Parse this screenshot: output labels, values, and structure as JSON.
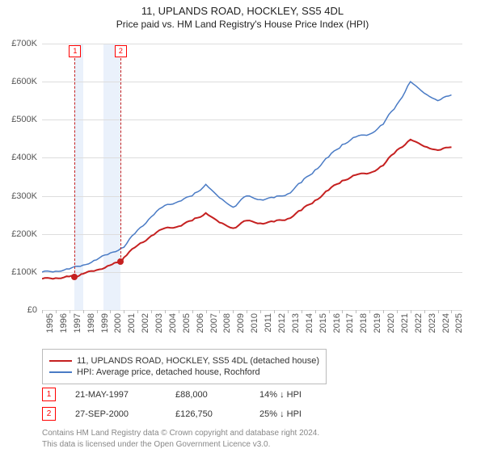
{
  "title_line1": "11, UPLANDS ROAD, HOCKLEY, SS5 4DL",
  "title_line2": "Price paid vs. HM Land Registry's House Price Index (HPI)",
  "chart": {
    "type": "line",
    "background_color": "#ffffff",
    "grid_color": "#dddddd",
    "axis_color": "#bbbbbb",
    "text_color": "#555555",
    "xlim": [
      1995,
      2025.8
    ],
    "ylim": [
      0,
      700000
    ],
    "ytick_step": 100000,
    "yticks": [
      {
        "v": 0,
        "label": "£0"
      },
      {
        "v": 100000,
        "label": "£100K"
      },
      {
        "v": 200000,
        "label": "£200K"
      },
      {
        "v": 300000,
        "label": "£300K"
      },
      {
        "v": 400000,
        "label": "£400K"
      },
      {
        "v": 500000,
        "label": "£500K"
      },
      {
        "v": 600000,
        "label": "£600K"
      },
      {
        "v": 700000,
        "label": "£700K"
      }
    ],
    "xticks": [
      1995,
      1996,
      1997,
      1998,
      1999,
      2000,
      2001,
      2002,
      2003,
      2004,
      2005,
      2006,
      2007,
      2008,
      2009,
      2010,
      2011,
      2012,
      2013,
      2014,
      2015,
      2016,
      2017,
      2018,
      2019,
      2020,
      2021,
      2022,
      2023,
      2024,
      2025
    ],
    "bands": [
      {
        "from": 1997.39,
        "to": 1998.0,
        "color": "#eaf1fb"
      },
      {
        "from": 1999.5,
        "to": 2000.74,
        "color": "#eaf1fb"
      }
    ],
    "markers": [
      {
        "num": "1",
        "x": 1997.39,
        "y": 88000
      },
      {
        "num": "2",
        "x": 2000.74,
        "y": 126750
      }
    ],
    "series": [
      {
        "label": "11, UPLANDS ROAD, HOCKLEY, SS5 4DL (detached house)",
        "color": "#c52020",
        "line_width": 2,
        "data": [
          [
            1995,
            82000
          ],
          [
            1996,
            84000
          ],
          [
            1997,
            88000
          ],
          [
            1997.39,
            88000
          ],
          [
            1998,
            95000
          ],
          [
            1999,
            105000
          ],
          [
            2000,
            118000
          ],
          [
            2000.74,
            126750
          ],
          [
            2001,
            138000
          ],
          [
            2002,
            170000
          ],
          [
            2003,
            195000
          ],
          [
            2004,
            215000
          ],
          [
            2005,
            220000
          ],
          [
            2006,
            235000
          ],
          [
            2007,
            255000
          ],
          [
            2008,
            230000
          ],
          [
            2009,
            215000
          ],
          [
            2010,
            235000
          ],
          [
            2011,
            228000
          ],
          [
            2012,
            232000
          ],
          [
            2013,
            240000
          ],
          [
            2014,
            262000
          ],
          [
            2015,
            288000
          ],
          [
            2016,
            315000
          ],
          [
            2017,
            340000
          ],
          [
            2018,
            355000
          ],
          [
            2019,
            360000
          ],
          [
            2020,
            380000
          ],
          [
            2021,
            420000
          ],
          [
            2022,
            448000
          ],
          [
            2023,
            430000
          ],
          [
            2024,
            420000
          ],
          [
            2025,
            428000
          ]
        ]
      },
      {
        "label": "HPI: Average price, detached house, Rochford",
        "color": "#4a7bc5",
        "line_width": 1.5,
        "data": [
          [
            1995,
            100000
          ],
          [
            1996,
            102000
          ],
          [
            1997,
            108000
          ],
          [
            1998,
            118000
          ],
          [
            1999,
            132000
          ],
          [
            2000,
            150000
          ],
          [
            2001,
            165000
          ],
          [
            2002,
            210000
          ],
          [
            2003,
            245000
          ],
          [
            2004,
            275000
          ],
          [
            2005,
            285000
          ],
          [
            2006,
            300000
          ],
          [
            2007,
            330000
          ],
          [
            2008,
            295000
          ],
          [
            2009,
            270000
          ],
          [
            2010,
            300000
          ],
          [
            2011,
            290000
          ],
          [
            2012,
            295000
          ],
          [
            2013,
            305000
          ],
          [
            2014,
            335000
          ],
          [
            2015,
            368000
          ],
          [
            2016,
            402000
          ],
          [
            2017,
            435000
          ],
          [
            2018,
            455000
          ],
          [
            2019,
            462000
          ],
          [
            2020,
            488000
          ],
          [
            2021,
            540000
          ],
          [
            2022,
            600000
          ],
          [
            2023,
            570000
          ],
          [
            2024,
            550000
          ],
          [
            2025,
            565000
          ]
        ]
      }
    ]
  },
  "legend": {
    "items": [
      {
        "color": "#c52020",
        "label": "11, UPLANDS ROAD, HOCKLEY, SS5 4DL (detached house)"
      },
      {
        "color": "#4a7bc5",
        "label": "HPI: Average price, detached house, Rochford"
      }
    ]
  },
  "sales": [
    {
      "num": "1",
      "date": "21-MAY-1997",
      "price": "£88,000",
      "pct": "14% ↓ HPI"
    },
    {
      "num": "2",
      "date": "27-SEP-2000",
      "price": "£126,750",
      "pct": "25% ↓ HPI"
    }
  ],
  "footer_line1": "Contains HM Land Registry data © Crown copyright and database right 2024.",
  "footer_line2": "This data is licensed under the Open Government Licence v3.0."
}
